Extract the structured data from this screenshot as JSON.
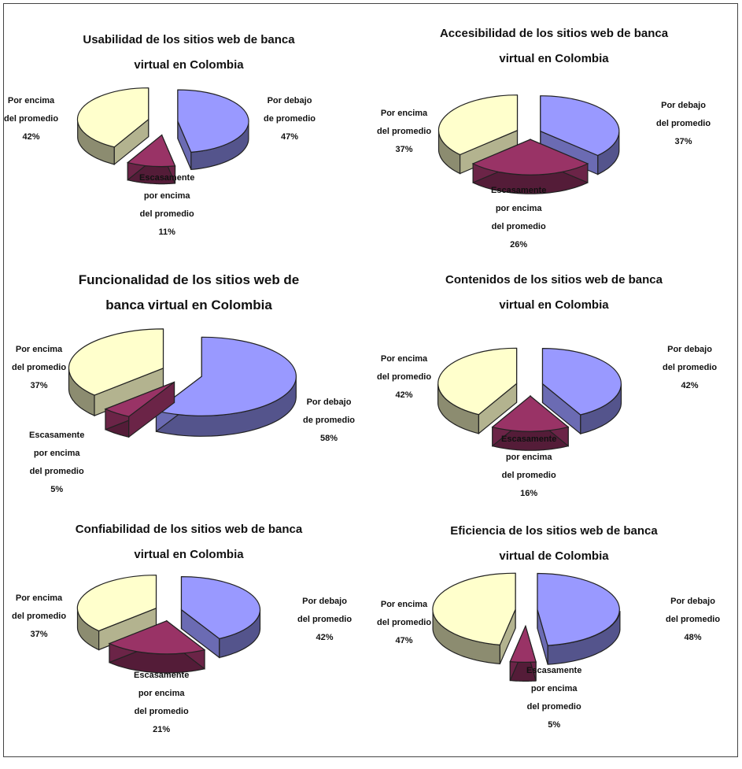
{
  "chart_data": [
    {
      "type": "pie",
      "title": [
        "Usabilidad de los sitios web de banca",
        "virtual en Colombia"
      ],
      "slices": [
        {
          "label": [
            "Por encima",
            "del promedio"
          ],
          "value": 42,
          "pct": "42%",
          "color": "#ffffcc"
        },
        {
          "label": [
            "Escasamente",
            "por encima",
            "del promedio"
          ],
          "value": 11,
          "pct": "11%",
          "color": "#993366"
        },
        {
          "label": [
            "Por debajo",
            "de promedio"
          ],
          "value": 47,
          "pct": "47%",
          "color": "#9999ff"
        }
      ]
    },
    {
      "type": "pie",
      "title": [
        "Accesibilidad de los sitios web de banca",
        "virtual en Colombia"
      ],
      "slices": [
        {
          "label": [
            "Por encima",
            "del promedio"
          ],
          "value": 37,
          "pct": "37%",
          "color": "#ffffcc"
        },
        {
          "label": [
            "Escasamente",
            "por encima",
            "del promedio"
          ],
          "value": 26,
          "pct": "26%",
          "color": "#993366"
        },
        {
          "label": [
            "Por debajo",
            "del promedio"
          ],
          "value": 37,
          "pct": "37%",
          "color": "#9999ff"
        }
      ]
    },
    {
      "type": "pie",
      "title": [
        "Funcionalidad de los sitios web de",
        "banca virtual en Colombia"
      ],
      "slices": [
        {
          "label": [
            "Por encima",
            "del promedio"
          ],
          "value": 37,
          "pct": "37%",
          "color": "#ffffcc"
        },
        {
          "label": [
            "Escasamente",
            "por encima",
            "del promedio"
          ],
          "value": 5,
          "pct": "5%",
          "color": "#993366"
        },
        {
          "label": [
            "Por debajo",
            "de promedio"
          ],
          "value": 58,
          "pct": "58%",
          "color": "#9999ff"
        }
      ]
    },
    {
      "type": "pie",
      "title": [
        "Contenidos de los sitios web de banca",
        "virtual en Colombia"
      ],
      "slices": [
        {
          "label": [
            "Por encima",
            "del promedio"
          ],
          "value": 42,
          "pct": "42%",
          "color": "#ffffcc"
        },
        {
          "label": [
            "Escasamente",
            "por encima",
            "del promedio"
          ],
          "value": 16,
          "pct": "16%",
          "color": "#993366"
        },
        {
          "label": [
            "Por debajo",
            "del promedio"
          ],
          "value": 42,
          "pct": "42%",
          "color": "#9999ff"
        }
      ]
    },
    {
      "type": "pie",
      "title": [
        "Confiabilidad de los sitios web de banca",
        "virtual en Colombia"
      ],
      "slices": [
        {
          "label": [
            "Por encima",
            "del promedio"
          ],
          "value": 37,
          "pct": "37%",
          "color": "#ffffcc"
        },
        {
          "label": [
            "Escasamente",
            "por encima",
            "del promedio"
          ],
          "value": 21,
          "pct": "21%",
          "color": "#993366"
        },
        {
          "label": [
            "Por debajo",
            "del promedio"
          ],
          "value": 42,
          "pct": "42%",
          "color": "#9999ff"
        }
      ]
    },
    {
      "type": "pie",
      "title": [
        "Eficiencia de los sitios web de banca",
        "virtual de Colombia"
      ],
      "slices": [
        {
          "label": [
            "Por encima",
            "del promedio"
          ],
          "value": 47,
          "pct": "47%",
          "color": "#ffffcc"
        },
        {
          "label": [
            "Escasamente",
            "por encima",
            "del promedio"
          ],
          "value": 5,
          "pct": "5%",
          "color": "#993366"
        },
        {
          "label": [
            "Por debajo",
            "del promedio"
          ],
          "value": 48,
          "pct": "48%",
          "color": "#9999ff"
        }
      ]
    }
  ]
}
